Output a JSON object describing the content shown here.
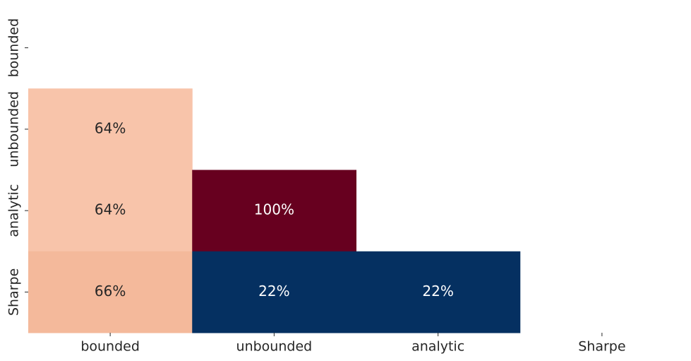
{
  "chart_data": {
    "type": "heatmap",
    "x_categories": [
      "bounded",
      "unbounded",
      "analytic",
      "Sharpe"
    ],
    "y_categories": [
      "bounded",
      "unbounded",
      "analytic",
      "Sharpe"
    ],
    "values": [
      [
        null,
        null,
        null,
        null
      ],
      [
        64,
        null,
        null,
        null
      ],
      [
        64,
        100,
        null,
        null
      ],
      [
        66,
        22,
        22,
        null
      ]
    ],
    "value_labels": [
      [
        null,
        null,
        null,
        null
      ],
      [
        "64%",
        null,
        null,
        null
      ],
      [
        "64%",
        "100%",
        null,
        null
      ],
      [
        "66%",
        "22%",
        "22%",
        null
      ]
    ],
    "colors": [
      [
        null,
        null,
        null,
        null
      ],
      [
        "#f8c4aa",
        null,
        null,
        null
      ],
      [
        "#f8c4aa",
        "#67001f",
        null,
        null
      ],
      [
        "#f4b99b",
        "#053061",
        "#053061",
        null
      ]
    ]
  }
}
